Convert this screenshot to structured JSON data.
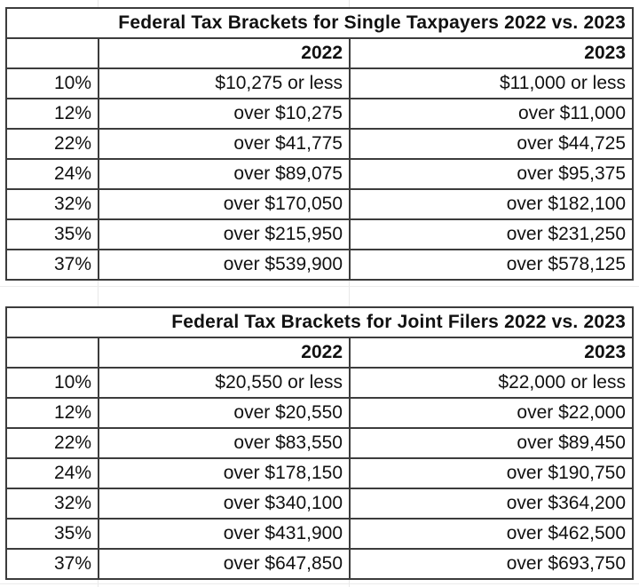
{
  "page": {
    "background": "#ffffff",
    "table_background": "#ffffff",
    "border_color": "#3c3c3c",
    "gridline_color": "#e8e8e8",
    "text_color": "#111111"
  },
  "chart_data": [
    {
      "type": "table",
      "title": "Federal Tax Brackets for Single Taxpayers 2022 vs. 2023",
      "columns": [
        "",
        "2022",
        "2023"
      ],
      "rows": [
        [
          "10%",
          "$10,275 or less",
          "$11,000 or less"
        ],
        [
          "12%",
          "over $10,275",
          "over $11,000"
        ],
        [
          "22%",
          "over $41,775",
          "over $44,725"
        ],
        [
          "24%",
          "over $89,075",
          "over $95,375"
        ],
        [
          "32%",
          "over $170,050",
          "over $182,100"
        ],
        [
          "35%",
          "over $215,950",
          "over $231,250"
        ],
        [
          "37%",
          "over $539,900",
          "over $578,125"
        ]
      ]
    },
    {
      "type": "table",
      "title": "Federal Tax Brackets for Joint Filers 2022 vs. 2023",
      "columns": [
        "",
        "2022",
        "2023"
      ],
      "rows": [
        [
          "10%",
          "$20,550 or less",
          "$22,000 or less"
        ],
        [
          "12%",
          "over $20,550",
          "over $22,000"
        ],
        [
          "22%",
          "over $83,550",
          "over $89,450"
        ],
        [
          "24%",
          "over $178,150",
          "over $190,750"
        ],
        [
          "32%",
          "over $340,100",
          "over $364,200"
        ],
        [
          "35%",
          "over $431,900",
          "over $462,500"
        ],
        [
          "37%",
          "over $647,850",
          "over $693,750"
        ]
      ]
    }
  ]
}
